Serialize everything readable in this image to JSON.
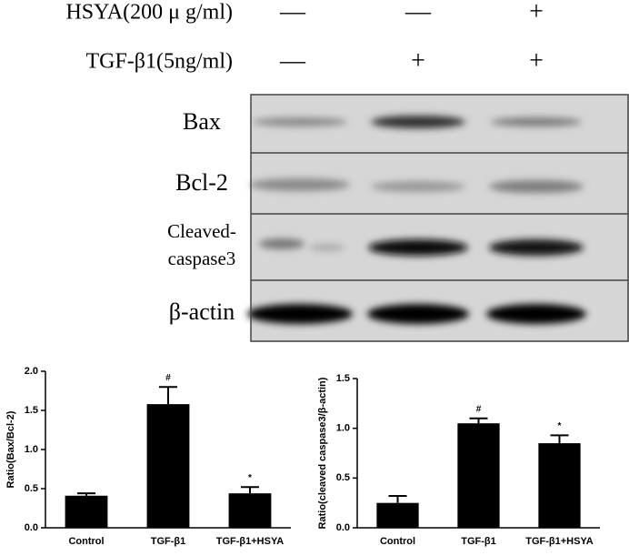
{
  "blot": {
    "treatments": [
      {
        "label": "HSYA(200 μ g/ml)",
        "signs": [
          "—",
          "—",
          "+"
        ]
      },
      {
        "label": "TGF-β1(5ng/ml)",
        "signs": [
          "—",
          "+",
          "+"
        ]
      }
    ],
    "bands": [
      [
        "Bax"
      ],
      [
        "Bcl-2"
      ],
      [
        "Cleaved-",
        "caspase3"
      ],
      [
        "β-actin"
      ]
    ]
  },
  "chart_data": [
    {
      "type": "bar",
      "y_label": "Ratio(Bax/Bcl-2)",
      "categories": [
        "Control",
        "TGF-β1",
        "TGF-β1+HSYA"
      ],
      "values": [
        0.41,
        1.58,
        0.44
      ],
      "errors": [
        0.03,
        0.22,
        0.08
      ],
      "sig_marks": [
        null,
        "#",
        "*"
      ],
      "color": "#000000",
      "ylim": [
        0,
        2
      ],
      "yticks": [
        {
          "value": 0,
          "label": "0.0"
        },
        {
          "value": 0.5,
          "label": "0.5"
        },
        {
          "value": 1,
          "label": "1.0"
        },
        {
          "value": 1.5,
          "label": "1.5"
        },
        {
          "value": 2,
          "label": "2.0"
        }
      ]
    },
    {
      "type": "bar",
      "y_label": "Ratio(cleaved caspase3/β-actin)",
      "categories": [
        "Control",
        "TGF-β1",
        "TGF-β1+HSYA"
      ],
      "values": [
        0.25,
        1.05,
        0.85
      ],
      "errors": [
        0.07,
        0.05,
        0.08
      ],
      "sig_marks": [
        null,
        "#",
        "*"
      ],
      "color": "#000000",
      "ylim": [
        0,
        1.5
      ],
      "yticks": [
        {
          "value": 0,
          "label": "0.0"
        },
        {
          "value": 0.5,
          "label": "0.5"
        },
        {
          "value": 1,
          "label": "1.0"
        },
        {
          "value": 1.5,
          "label": "1.5"
        }
      ]
    }
  ]
}
